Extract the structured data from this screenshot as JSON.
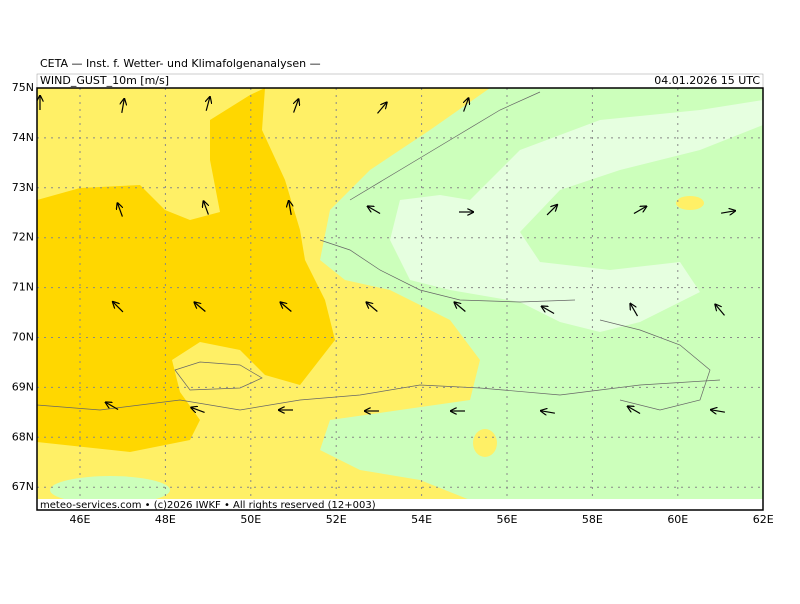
{
  "header": {
    "title": "CETA — Inst. f. Wetter- und Klimafolgenanalysen —",
    "variable": "WIND_GUST_10m [m/s]",
    "datetime": "04.01.2026 15 UTC"
  },
  "axes": {
    "lat_labels": [
      "75N",
      "74N",
      "73N",
      "72N",
      "71N",
      "70N",
      "69N",
      "68N",
      "67N"
    ],
    "lon_labels": [
      "46E",
      "48E",
      "50E",
      "52E",
      "54E",
      "56E",
      "58E",
      "60E",
      "62E"
    ]
  },
  "footer": "meteo-services.com • (c)2026 IWKF • All rights reserved (12+003)"
}
